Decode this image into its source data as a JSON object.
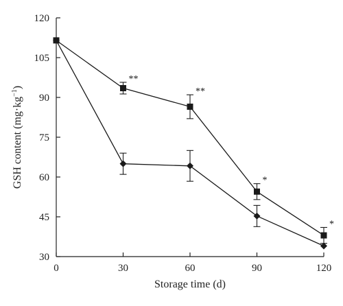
{
  "chart_data": {
    "type": "line",
    "title": "",
    "xlabel": "Storage time (d)",
    "ylabel": "GSH content (mg·kg",
    "ylabel_sup": "−1",
    "ylabel_close": ")",
    "x": [
      0,
      30,
      60,
      90,
      120
    ],
    "xlim": [
      0,
      120
    ],
    "ylim": [
      30,
      120
    ],
    "xticks": [
      0,
      30,
      60,
      90,
      120
    ],
    "yticks": [
      30,
      45,
      60,
      75,
      90,
      105,
      120
    ],
    "grid": false,
    "legend": "none",
    "series": [
      {
        "marker": "square",
        "values": [
          111.5,
          93.5,
          86.5,
          54.5,
          38
        ],
        "errors": [
          0,
          2.2,
          4.5,
          3,
          3
        ],
        "annotations": [
          "",
          "**",
          "**",
          "*",
          "*"
        ]
      },
      {
        "marker": "diamond",
        "values": [
          111.5,
          65,
          64.2,
          45.3,
          34
        ],
        "errors": [
          0,
          4,
          5.8,
          4,
          0
        ],
        "annotations": [
          "",
          "",
          "",
          "",
          ""
        ]
      }
    ],
    "line_color": "#1a1a1a"
  }
}
